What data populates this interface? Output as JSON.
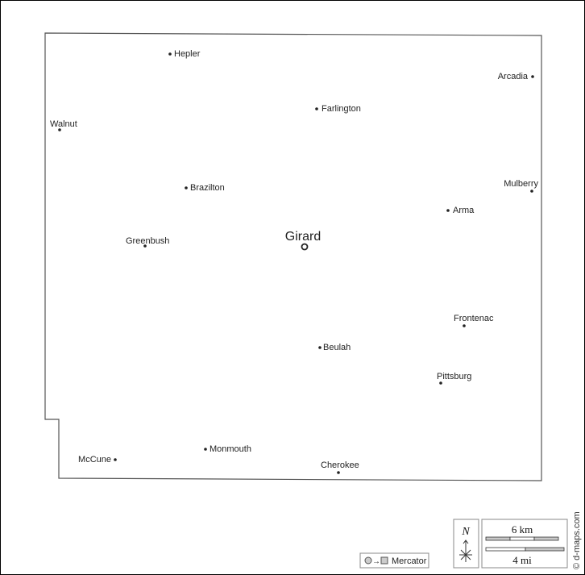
{
  "map": {
    "capital": "Girard",
    "places": [
      "Hepler",
      "Arcadia",
      "Farlington",
      "Walnut",
      "Brazilton",
      "Mulberry",
      "Arma",
      "Greenbush",
      "Frontenac",
      "Beulah",
      "Pittsburg",
      "Monmouth",
      "McCune",
      "Cherokee"
    ]
  },
  "legend": {
    "projection": "Mercator",
    "north": "N",
    "scale_km": "6 km",
    "scale_mi": "4 mi",
    "credit": "© d-maps.com"
  },
  "colors": {
    "boundary": "#555555",
    "scale_fill": "#c8c8c8",
    "frame": "#000000"
  }
}
